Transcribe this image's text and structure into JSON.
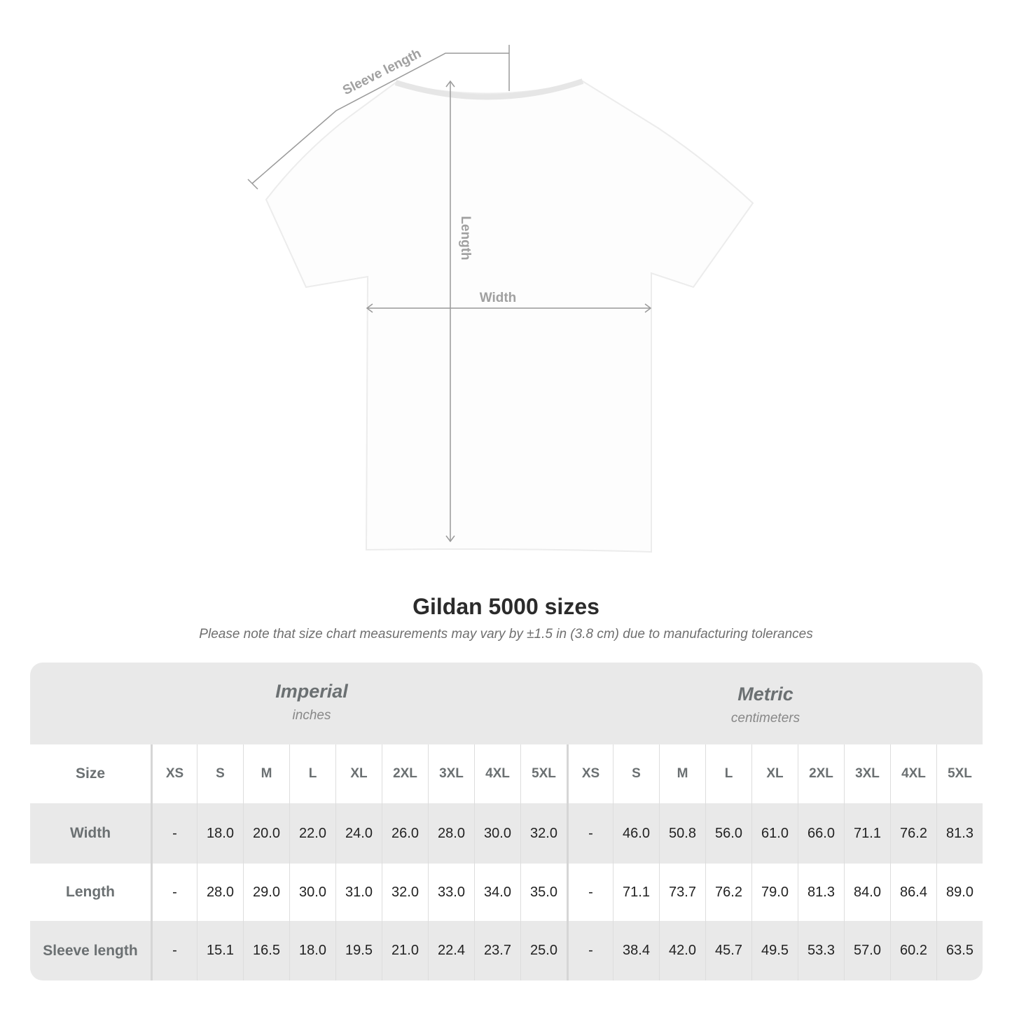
{
  "diagram": {
    "sleeve_label": "Sleeve length",
    "length_label": "Length",
    "width_label": "Width"
  },
  "title": "Gildan 5000 sizes",
  "subtitle": "Please note that size chart measurements may vary by ±1.5 in (3.8 cm) due to manufacturing tolerances",
  "table": {
    "imperial": {
      "name": "Imperial",
      "unit": "inches"
    },
    "metric": {
      "name": "Metric",
      "unit": "centimeters"
    },
    "size_label": "Size",
    "sizes": [
      "XS",
      "S",
      "M",
      "L",
      "XL",
      "2XL",
      "3XL",
      "4XL",
      "5XL"
    ],
    "rows": [
      {
        "label": "Width",
        "imperial": [
          "-",
          "18.0",
          "20.0",
          "22.0",
          "24.0",
          "26.0",
          "28.0",
          "30.0",
          "32.0"
        ],
        "metric": [
          "-",
          "46.0",
          "50.8",
          "56.0",
          "61.0",
          "66.0",
          "71.1",
          "76.2",
          "81.3"
        ]
      },
      {
        "label": "Length",
        "imperial": [
          "-",
          "28.0",
          "29.0",
          "30.0",
          "31.0",
          "32.0",
          "33.0",
          "34.0",
          "35.0"
        ],
        "metric": [
          "-",
          "71.1",
          "73.7",
          "76.2",
          "79.0",
          "81.3",
          "84.0",
          "86.4",
          "89.0"
        ]
      },
      {
        "label": "Sleeve length",
        "imperial": [
          "-",
          "15.1",
          "16.5",
          "18.0",
          "19.5",
          "21.0",
          "22.4",
          "23.7",
          "25.0"
        ],
        "metric": [
          "-",
          "38.4",
          "42.0",
          "45.7",
          "49.5",
          "53.3",
          "57.0",
          "60.2",
          "63.5"
        ]
      }
    ]
  },
  "colors": {
    "header_bg": "#e9e9e9",
    "label_text": "#6b7072",
    "measure_line": "#9a9a9a"
  }
}
